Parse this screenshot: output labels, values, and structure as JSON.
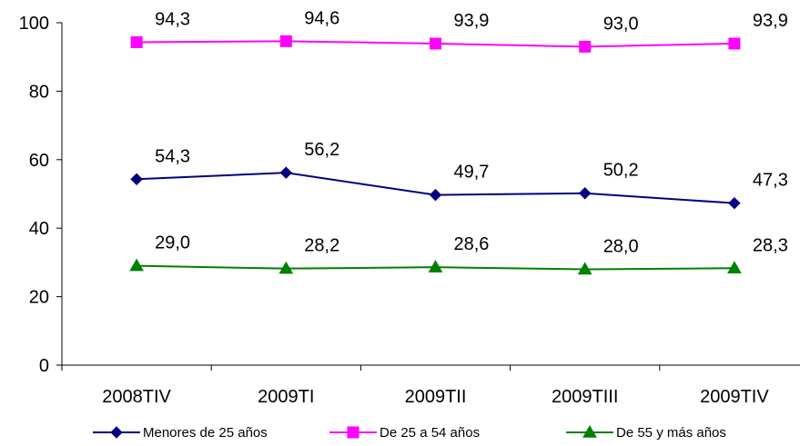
{
  "chart_data": {
    "type": "line",
    "categories": [
      "2008TIV",
      "2009TI",
      "2009TII",
      "2009TIII",
      "2009TIV"
    ],
    "ylim": [
      0,
      100
    ],
    "yticks": [
      "0",
      "20",
      "40",
      "60",
      "80",
      "100"
    ],
    "grid": false,
    "legend_position": "bottom",
    "series": [
      {
        "name": "Menores de 25 años",
        "values": [
          54.3,
          56.2,
          49.7,
          50.2,
          47.3
        ],
        "labels": [
          "54,3",
          "56,2",
          "49,7",
          "50,2",
          "47,3"
        ],
        "color": "#000080",
        "marker": "diamond"
      },
      {
        "name": "De 25 a 54 años",
        "values": [
          94.3,
          94.6,
          93.9,
          93.0,
          93.9
        ],
        "labels": [
          "94,3",
          "94,6",
          "93,9",
          "93,0",
          "93,9"
        ],
        "color": "#FF00FF",
        "marker": "square"
      },
      {
        "name": "De 55 y más años",
        "values": [
          29.0,
          28.2,
          28.6,
          28.0,
          28.3
        ],
        "labels": [
          "29,0",
          "28,2",
          "28,6",
          "28,0",
          "28,3"
        ],
        "color": "#008000",
        "marker": "triangle"
      }
    ]
  }
}
